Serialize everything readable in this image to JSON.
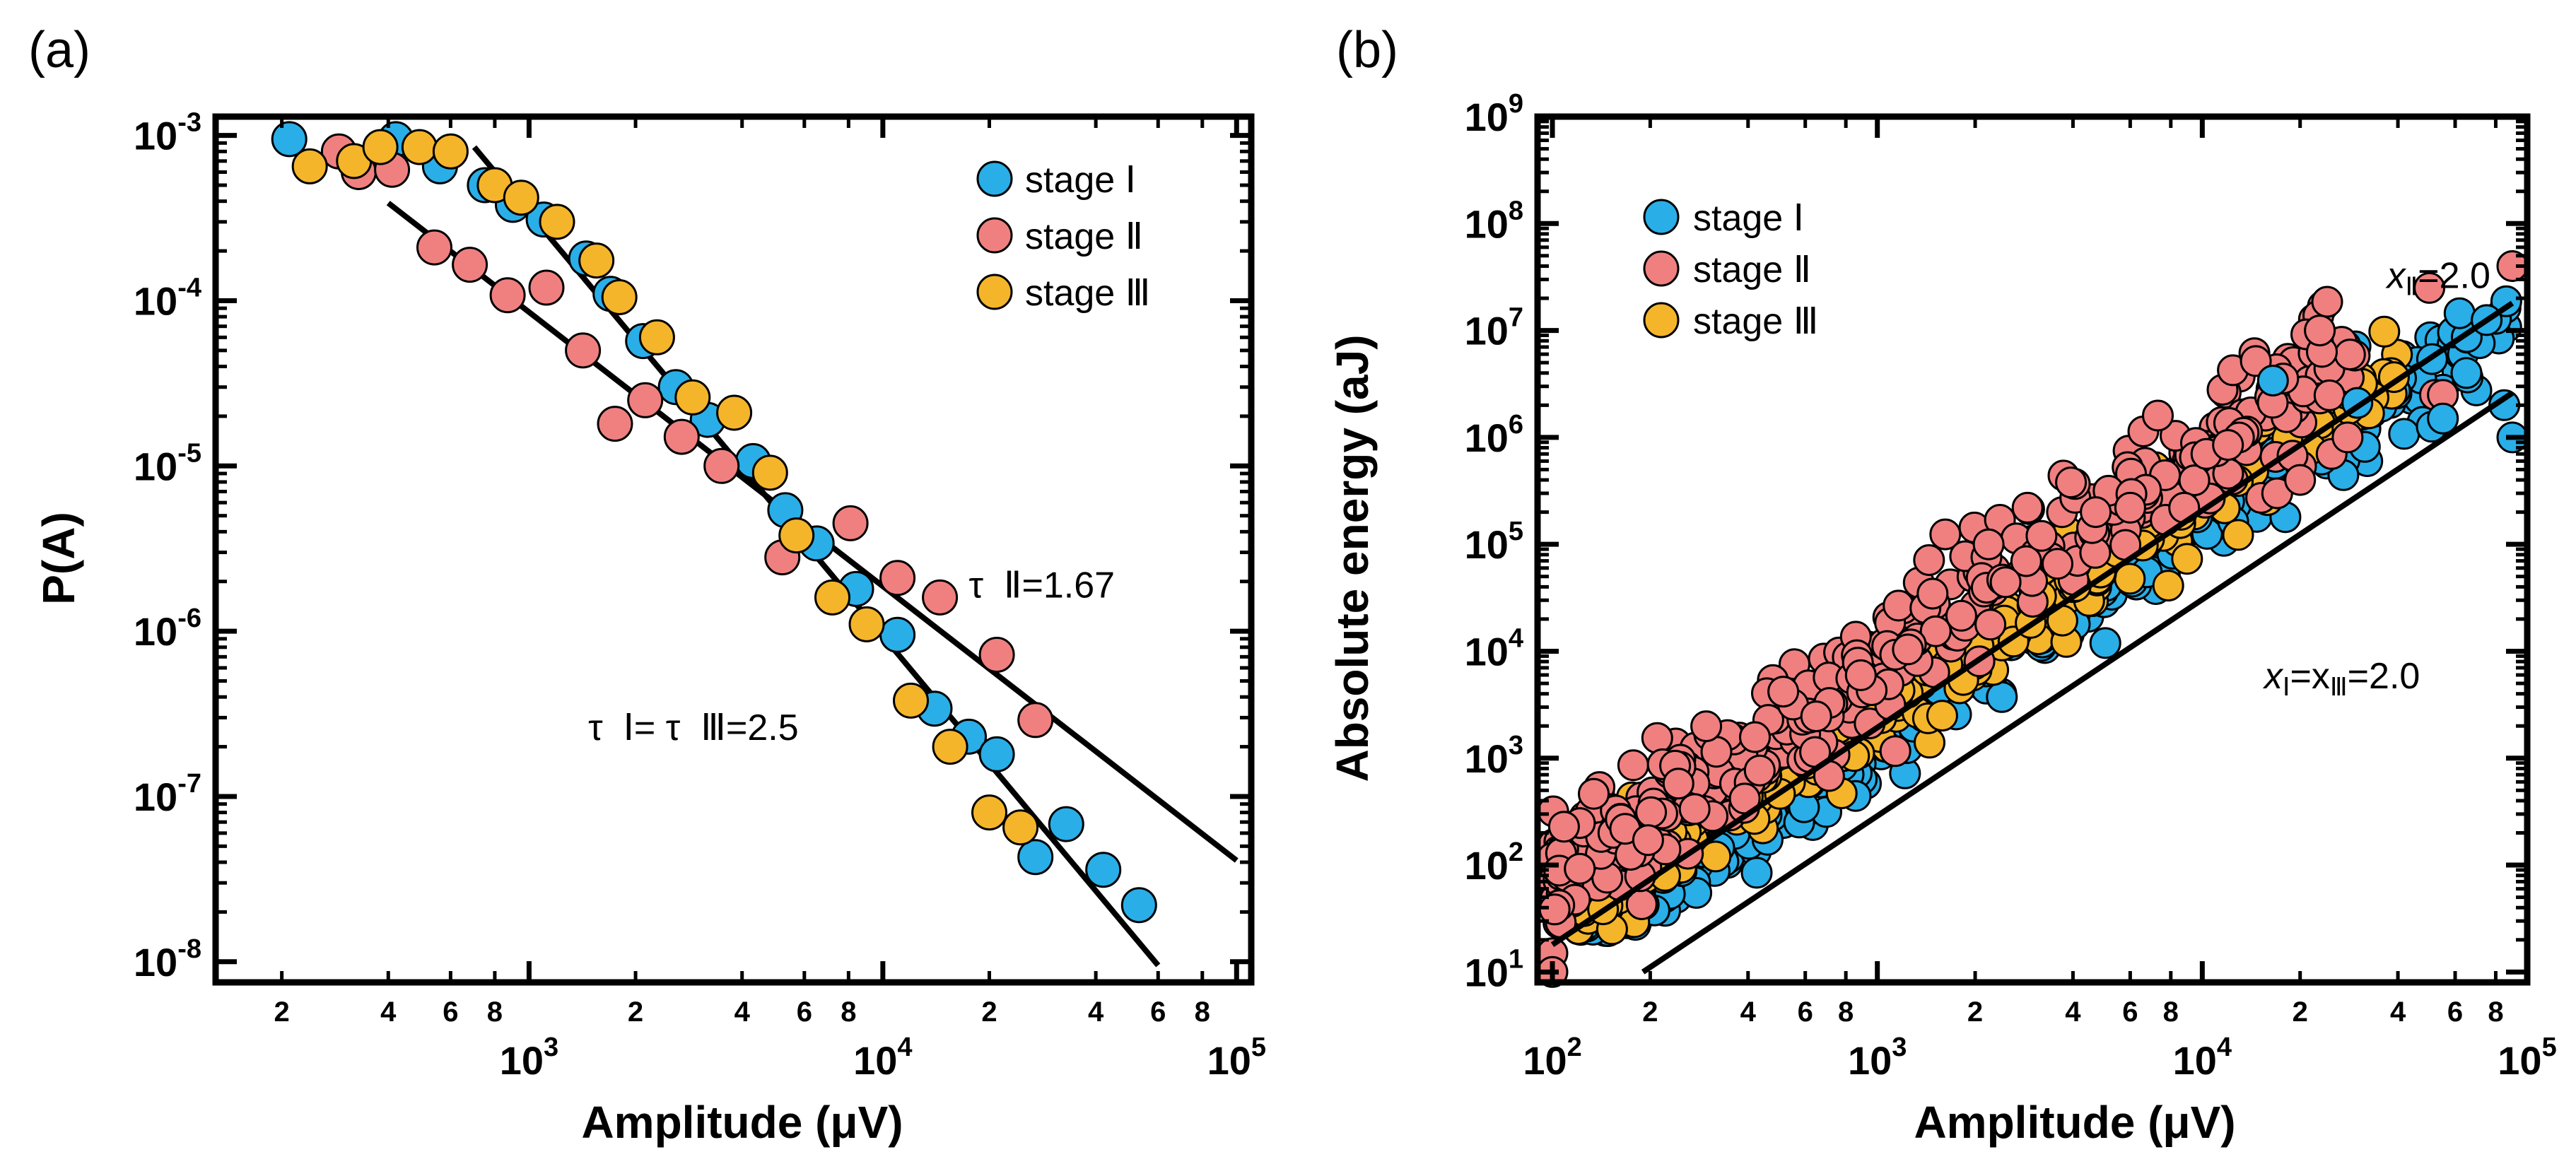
{
  "chart_data": [
    {
      "type": "scatter",
      "panel_label": "(a)",
      "xlabel": "Amplitude (μV)",
      "ylabel": "P(A)",
      "xscale": "log",
      "yscale": "log",
      "xlim": [
        130,
        110000
      ],
      "ylim": [
        7.5e-09,
        0.0013
      ],
      "x_ticks": [
        {
          "value": 1000,
          "base": "10",
          "exp": "3"
        },
        {
          "value": 10000,
          "base": "10",
          "exp": "4"
        },
        {
          "value": 100000,
          "base": "10",
          "exp": "5"
        }
      ],
      "x_minor_ticks": [
        {
          "value": 200,
          "label": "2"
        },
        {
          "value": 400,
          "label": "4"
        },
        {
          "value": 600,
          "label": "6"
        },
        {
          "value": 800,
          "label": "8"
        },
        {
          "value": 2000,
          "label": "2"
        },
        {
          "value": 4000,
          "label": "4"
        },
        {
          "value": 6000,
          "label": "6"
        },
        {
          "value": 8000,
          "label": "8"
        },
        {
          "value": 20000,
          "label": "2"
        },
        {
          "value": 40000,
          "label": "4"
        },
        {
          "value": 60000,
          "label": "6"
        },
        {
          "value": 80000,
          "label": "8"
        }
      ],
      "y_ticks": [
        {
          "value": 0.001,
          "base": "10",
          "exp": "-3"
        },
        {
          "value": 0.0001,
          "base": "10",
          "exp": "-4"
        },
        {
          "value": 1e-05,
          "base": "10",
          "exp": "-5"
        },
        {
          "value": 1e-06,
          "base": "10",
          "exp": "-6"
        },
        {
          "value": 1e-07,
          "base": "10",
          "exp": "-7"
        },
        {
          "value": 1e-08,
          "base": "10",
          "exp": "-8"
        }
      ],
      "legend": {
        "position": "top-right",
        "entries": [
          "stage Ⅰ",
          "stage Ⅱ",
          "stage Ⅲ"
        ]
      },
      "series": [
        {
          "name": "stage Ⅰ",
          "color": "#29aee8",
          "points": [
            [
              210,
              0.00095
            ],
            [
              420,
              0.00095
            ],
            [
              560,
              0.00065
            ],
            [
              750,
              0.0005
            ],
            [
              900,
              0.00038
            ],
            [
              1100,
              0.00031
            ],
            [
              1450,
              0.00018
            ],
            [
              1700,
              0.00011
            ],
            [
              2100,
              5.7e-05
            ],
            [
              2600,
              3e-05
            ],
            [
              3200,
              1.9e-05
            ],
            [
              4300,
              1.07e-05
            ],
            [
              5300,
              5.4e-06
            ],
            [
              6500,
              3.4e-06
            ],
            [
              8400,
              1.8e-06
            ],
            [
              11000,
              9.5e-07
            ],
            [
              14000,
              3.4e-07
            ],
            [
              17500,
              2.3e-07
            ],
            [
              21000,
              1.8e-07
            ],
            [
              27000,
              4.3e-08
            ],
            [
              33000,
              6.8e-08
            ],
            [
              42000,
              3.6e-08
            ],
            [
              53000,
              2.2e-08
            ]
          ]
        },
        {
          "name": "stage Ⅱ",
          "color": "#f08080",
          "points": [
            [
              290,
              0.0008
            ],
            [
              330,
              0.0006
            ],
            [
              410,
              0.00062
            ],
            [
              540,
              0.00021
            ],
            [
              680,
              0.000165
            ],
            [
              870,
              0.000108
            ],
            [
              1120,
              0.00012
            ],
            [
              1420,
              5e-05
            ],
            [
              1750,
              1.8e-05
            ],
            [
              2130,
              2.5e-05
            ],
            [
              2700,
              1.5e-05
            ],
            [
              3500,
              1e-05
            ],
            [
              5200,
              2.8e-06
            ],
            [
              8100,
              4.5e-06
            ],
            [
              11000,
              2.1e-06
            ],
            [
              14500,
              1.6e-06
            ],
            [
              21000,
              7.2e-07
            ],
            [
              27000,
              2.9e-07
            ]
          ]
        },
        {
          "name": "stage Ⅲ",
          "color": "#f5b52a",
          "points": [
            [
              240,
              0.00065
            ],
            [
              320,
              0.0007
            ],
            [
              380,
              0.00085
            ],
            [
              490,
              0.00085
            ],
            [
              600,
              0.0008
            ],
            [
              800,
              0.0005
            ],
            [
              950,
              0.00042
            ],
            [
              1200,
              0.0003
            ],
            [
              1550,
              0.000175
            ],
            [
              1800,
              0.000105
            ],
            [
              2300,
              6e-05
            ],
            [
              2900,
              2.6e-05
            ],
            [
              3800,
              2.1e-05
            ],
            [
              4800,
              9.1e-06
            ],
            [
              5700,
              3.8e-06
            ],
            [
              7200,
              1.6e-06
            ],
            [
              9000,
              1.1e-06
            ],
            [
              12000,
              3.8e-07
            ],
            [
              15500,
              2e-07
            ],
            [
              20000,
              8e-08
            ],
            [
              24500,
              6.5e-08
            ]
          ]
        }
      ],
      "fit_lines": [
        {
          "name": "τⅠ=τⅢ=2.5",
          "x": [
            700,
            60000
          ],
          "y": [
            0.00085,
            9.5e-09
          ]
        },
        {
          "name": "τⅡ=1.67",
          "x": [
            400,
            100000
          ],
          "y": [
            0.00039,
            4.1e-08
          ]
        }
      ],
      "annotations": [
        {
          "text": "τ  Ⅱ=1.67",
          "x": 17500,
          "y": 1.6e-06
        },
        {
          "text": "τ  Ⅰ= τ  Ⅲ=2.5",
          "x": 1470,
          "y": 2.2e-07
        }
      ]
    },
    {
      "type": "scatter",
      "panel_label": "(b)",
      "xlabel": "Amplitude (μV)",
      "ylabel": "Absolute energy (aJ)",
      "xscale": "log",
      "yscale": "log",
      "xlim": [
        90,
        100000
      ],
      "ylim": [
        8,
        1000000000
      ],
      "x_ticks": [
        {
          "value": 100,
          "base": "10",
          "exp": "2"
        },
        {
          "value": 1000,
          "base": "10",
          "exp": "3"
        },
        {
          "value": 10000,
          "base": "10",
          "exp": "4"
        },
        {
          "value": 100000,
          "base": "10",
          "exp": "5"
        }
      ],
      "x_minor_ticks": [
        {
          "value": 200,
          "label": "2"
        },
        {
          "value": 400,
          "label": "4"
        },
        {
          "value": 600,
          "label": "6"
        },
        {
          "value": 800,
          "label": "8"
        },
        {
          "value": 2000,
          "label": "2"
        },
        {
          "value": 4000,
          "label": "4"
        },
        {
          "value": 6000,
          "label": "6"
        },
        {
          "value": 8000,
          "label": "8"
        },
        {
          "value": 20000,
          "label": "2"
        },
        {
          "value": 40000,
          "label": "4"
        },
        {
          "value": 60000,
          "label": "6"
        },
        {
          "value": 80000,
          "label": "8"
        }
      ],
      "y_ticks": [
        {
          "value": 10,
          "base": "10",
          "exp": "1"
        },
        {
          "value": 100,
          "base": "10",
          "exp": "2"
        },
        {
          "value": 1000,
          "base": "10",
          "exp": "3"
        },
        {
          "value": 10000,
          "base": "10",
          "exp": "4"
        },
        {
          "value": 100000,
          "base": "10",
          "exp": "5"
        },
        {
          "value": 1000000,
          "base": "10",
          "exp": "6"
        },
        {
          "value": 10000000,
          "base": "10",
          "exp": "7"
        },
        {
          "value": 100000000,
          "base": "10",
          "exp": "8"
        },
        {
          "value": 1000000000,
          "base": "10",
          "exp": "9"
        }
      ],
      "legend": {
        "position": "top-left",
        "entries": [
          "stage Ⅰ",
          "stage Ⅱ",
          "stage Ⅲ"
        ]
      },
      "series_colors": {
        "stage Ⅰ": "#29aee8",
        "stage Ⅱ": "#f08080",
        "stage Ⅲ": "#f5b52a"
      },
      "cloud_model": [
        {
          "name": "stage Ⅰ",
          "count": 420,
          "x_range": [
            120,
            90000
          ],
          "log10_prefactor": -2.75,
          "exponent": 2.0,
          "scatter_dex": 0.22
        },
        {
          "name": "stage Ⅲ",
          "count": 380,
          "x_range": [
            120,
            40000
          ],
          "log10_prefactor": -2.55,
          "exponent": 2.0,
          "scatter_dex": 0.22
        },
        {
          "name": "stage Ⅱ",
          "count": 420,
          "x_range": [
            100,
            30000
          ],
          "log10_prefactor": -2.1,
          "exponent": 2.0,
          "scatter_dex": 0.28
        }
      ],
      "outliers": [
        {
          "name": "stage Ⅱ",
          "points": [
            [
              100,
              15
            ],
            [
              100,
              10
            ],
            [
              2200,
              100000
            ],
            [
              2900,
              220000
            ],
            [
              3200,
              120000
            ],
            [
              4700,
              200000
            ],
            [
              6000,
              220000
            ],
            [
              7300,
              1600000
            ],
            [
              10300,
              700000
            ],
            [
              12000,
              850000
            ],
            [
              17000,
              300000
            ],
            [
              20000,
              400000
            ],
            [
              23000,
              10000000
            ],
            [
              25000,
              700000
            ],
            [
              28000,
              1000000
            ],
            [
              50000,
              25000000
            ],
            [
              52000,
              2500000
            ],
            [
              55000,
              2500000
            ],
            [
              90000,
              40000000
            ]
          ]
        },
        {
          "name": "stage Ⅰ",
          "points": [
            [
              16500,
              3400000
            ],
            [
              30000,
              2100000
            ],
            [
              55000,
              1500000
            ],
            [
              65000,
              4000000
            ],
            [
              75000,
              12500000
            ],
            [
              85000,
              2000000
            ],
            [
              90000,
              1000000
            ]
          ]
        }
      ],
      "fit_lines": [
        {
          "name": "xⅡ=2.0",
          "x": [
            100,
            90000
          ],
          "y": [
            18,
            18000000
          ]
        },
        {
          "name": "xⅠ=xⅢ=2.0",
          "x": [
            190,
            90000
          ],
          "y": [
            10,
            2600000
          ]
        }
      ],
      "annotations": [
        {
          "text_x": "x",
          "text_sub": "Ⅱ",
          "text_rest": "=2.0",
          "x": 37000,
          "y": 25000000
        },
        {
          "text_x": "x",
          "text_sub": "Ⅰ",
          "text_mid": "=x",
          "text_sub2": "Ⅲ",
          "text_rest": "=2.0",
          "x": 15500,
          "y": 4500
        }
      ]
    }
  ]
}
